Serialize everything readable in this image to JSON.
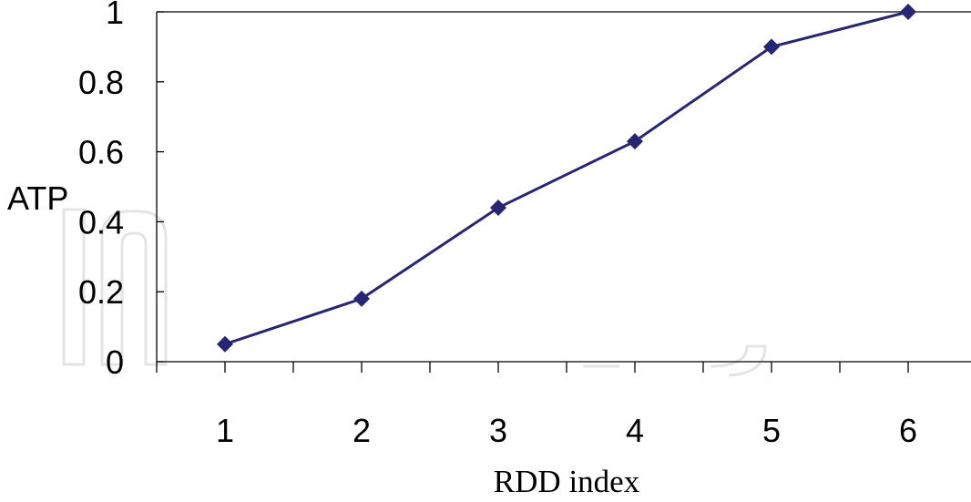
{
  "chart_data": {
    "type": "line",
    "title": "",
    "xlabel": "RDD index",
    "ylabel": "ATP",
    "x": [
      1,
      2,
      3,
      4,
      5,
      6
    ],
    "series": [
      {
        "values": [
          0.05,
          0.18,
          0.44,
          0.63,
          0.9,
          1.0
        ]
      }
    ],
    "x_tick_labels": [
      "1",
      "2",
      "3",
      "4",
      "5",
      "6"
    ],
    "y_ticks": [
      0,
      0.2,
      0.4,
      0.6,
      0.8,
      1
    ],
    "y_tick_labels": [
      "0",
      "0.2",
      "0.4",
      "0.6",
      "0.8",
      "1"
    ],
    "ylim": [
      0,
      1
    ],
    "grid": false,
    "legend": "none",
    "colors": {
      "series": "#262673",
      "axes": "#000000"
    },
    "marker": "diamond"
  }
}
